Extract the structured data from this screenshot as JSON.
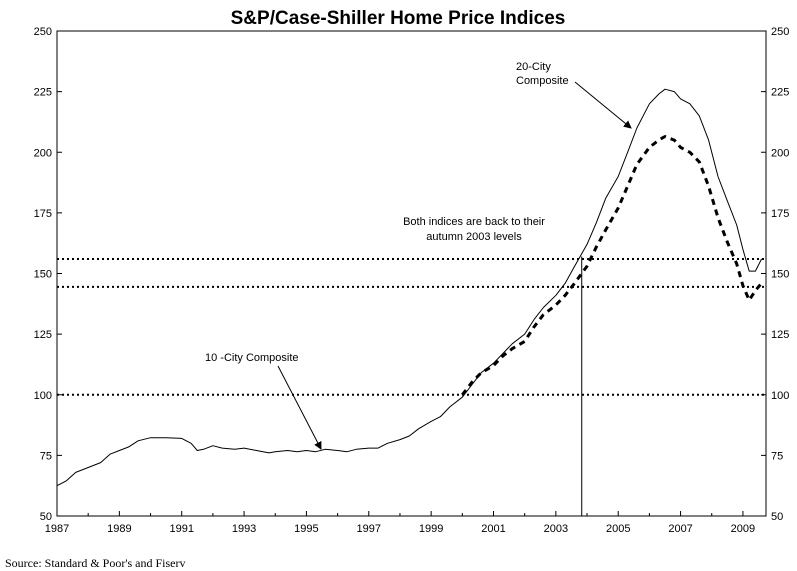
{
  "chart_data": {
    "type": "line",
    "title": "S&P/Case-Shiller Home Price Indices",
    "xlabel": "",
    "ylabel": "",
    "xlim": [
      1987,
      2009.7
    ],
    "ylim": [
      50,
      250
    ],
    "x_ticks": [
      "1987",
      "1989",
      "1991",
      "1993",
      "1995",
      "1997",
      "1999",
      "2001",
      "2003",
      "2005",
      "2007",
      "2009"
    ],
    "y_ticks": [
      "50",
      "75",
      "100",
      "125",
      "150",
      "175",
      "200",
      "225",
      "250"
    ],
    "grid": false,
    "source": "Source: Standard & Poor's and Fiserv",
    "series": [
      {
        "name": "10 -City Composite",
        "style": "thin-solid",
        "color": "#000000",
        "points": [
          [
            1987.0,
            62.5
          ],
          [
            1987.3,
            64.5
          ],
          [
            1987.6,
            68
          ],
          [
            1988.0,
            70
          ],
          [
            1988.4,
            72
          ],
          [
            1988.7,
            75.5
          ],
          [
            1989.0,
            77
          ],
          [
            1989.3,
            78.5
          ],
          [
            1989.6,
            81
          ],
          [
            1990.0,
            82.3
          ],
          [
            1990.5,
            82.3
          ],
          [
            1991.0,
            82
          ],
          [
            1991.3,
            80
          ],
          [
            1991.5,
            77
          ],
          [
            1991.7,
            77.5
          ],
          [
            1992.0,
            79
          ],
          [
            1992.3,
            78
          ],
          [
            1992.7,
            77.5
          ],
          [
            1993.0,
            78
          ],
          [
            1993.4,
            77
          ],
          [
            1993.8,
            76
          ],
          [
            1994.0,
            76.5
          ],
          [
            1994.4,
            77
          ],
          [
            1994.7,
            76.5
          ],
          [
            1995.0,
            77
          ],
          [
            1995.3,
            76.5
          ],
          [
            1995.6,
            77.5
          ],
          [
            1996.0,
            77
          ],
          [
            1996.3,
            76.5
          ],
          [
            1996.6,
            77.5
          ],
          [
            1997.0,
            78
          ],
          [
            1997.3,
            78
          ],
          [
            1997.6,
            80
          ],
          [
            1998.0,
            81.5
          ],
          [
            1998.3,
            83
          ],
          [
            1998.6,
            86
          ],
          [
            1999.0,
            89
          ],
          [
            1999.3,
            91
          ],
          [
            1999.6,
            95
          ],
          [
            2000.0,
            99
          ],
          [
            2000.3,
            104
          ],
          [
            2000.6,
            109
          ],
          [
            2001.0,
            113
          ],
          [
            2001.3,
            117
          ],
          [
            2001.6,
            121
          ],
          [
            2002.0,
            125
          ],
          [
            2002.3,
            131
          ],
          [
            2002.6,
            136
          ],
          [
            2003.0,
            141
          ],
          [
            2003.3,
            146
          ],
          [
            2003.6,
            153
          ],
          [
            2004.0,
            162
          ],
          [
            2004.3,
            171
          ],
          [
            2004.6,
            181
          ],
          [
            2005.0,
            190
          ],
          [
            2005.3,
            200
          ],
          [
            2005.6,
            210
          ],
          [
            2006.0,
            220
          ],
          [
            2006.3,
            224
          ],
          [
            2006.5,
            226
          ],
          [
            2006.8,
            225
          ],
          [
            2007.0,
            222
          ],
          [
            2007.3,
            220
          ],
          [
            2007.6,
            215
          ],
          [
            2007.9,
            205
          ],
          [
            2008.2,
            190
          ],
          [
            2008.5,
            180
          ],
          [
            2008.8,
            170
          ],
          [
            2009.0,
            160
          ],
          [
            2009.2,
            151
          ],
          [
            2009.4,
            151
          ],
          [
            2009.6,
            156
          ]
        ]
      },
      {
        "name": "20-City Composite",
        "style": "thick-dashed",
        "color": "#000000",
        "points": [
          [
            2000.0,
            100
          ],
          [
            2000.3,
            105
          ],
          [
            2000.6,
            109
          ],
          [
            2001.0,
            112
          ],
          [
            2001.3,
            116
          ],
          [
            2001.6,
            119
          ],
          [
            2002.0,
            122
          ],
          [
            2002.3,
            128
          ],
          [
            2002.6,
            133
          ],
          [
            2003.0,
            137
          ],
          [
            2003.3,
            141
          ],
          [
            2003.6,
            146
          ],
          [
            2004.0,
            153
          ],
          [
            2004.3,
            161
          ],
          [
            2004.6,
            168
          ],
          [
            2005.0,
            177
          ],
          [
            2005.3,
            186
          ],
          [
            2005.6,
            195
          ],
          [
            2006.0,
            202
          ],
          [
            2006.3,
            205
          ],
          [
            2006.5,
            206.5
          ],
          [
            2006.8,
            205
          ],
          [
            2007.0,
            202
          ],
          [
            2007.3,
            200
          ],
          [
            2007.6,
            196
          ],
          [
            2007.9,
            186
          ],
          [
            2008.2,
            173
          ],
          [
            2008.5,
            163
          ],
          [
            2008.8,
            154
          ],
          [
            2009.0,
            145
          ],
          [
            2009.2,
            139
          ],
          [
            2009.4,
            143
          ],
          [
            2009.6,
            146
          ]
        ]
      }
    ],
    "reference_lines": [
      {
        "orientation": "horizontal",
        "y": 100,
        "style": "dotted"
      },
      {
        "orientation": "horizontal",
        "y": 144.5,
        "style": "dotted"
      },
      {
        "orientation": "horizontal",
        "y": 156,
        "style": "dotted"
      },
      {
        "orientation": "vertical",
        "x": 2003.83,
        "style": "solid"
      }
    ],
    "annotations": [
      {
        "id": "label-20-city",
        "lines": [
          "20-City",
          "Composite"
        ],
        "arrow_to": [
          2005.3,
          207
        ]
      },
      {
        "id": "label-10-city",
        "lines": [
          "10 -City Composite"
        ],
        "arrow_to": [
          1995.5,
          77
        ]
      },
      {
        "id": "label-autumn-2003",
        "lines": [
          "Both indices are back to their",
          "autumn 2003 levels"
        ]
      }
    ]
  }
}
